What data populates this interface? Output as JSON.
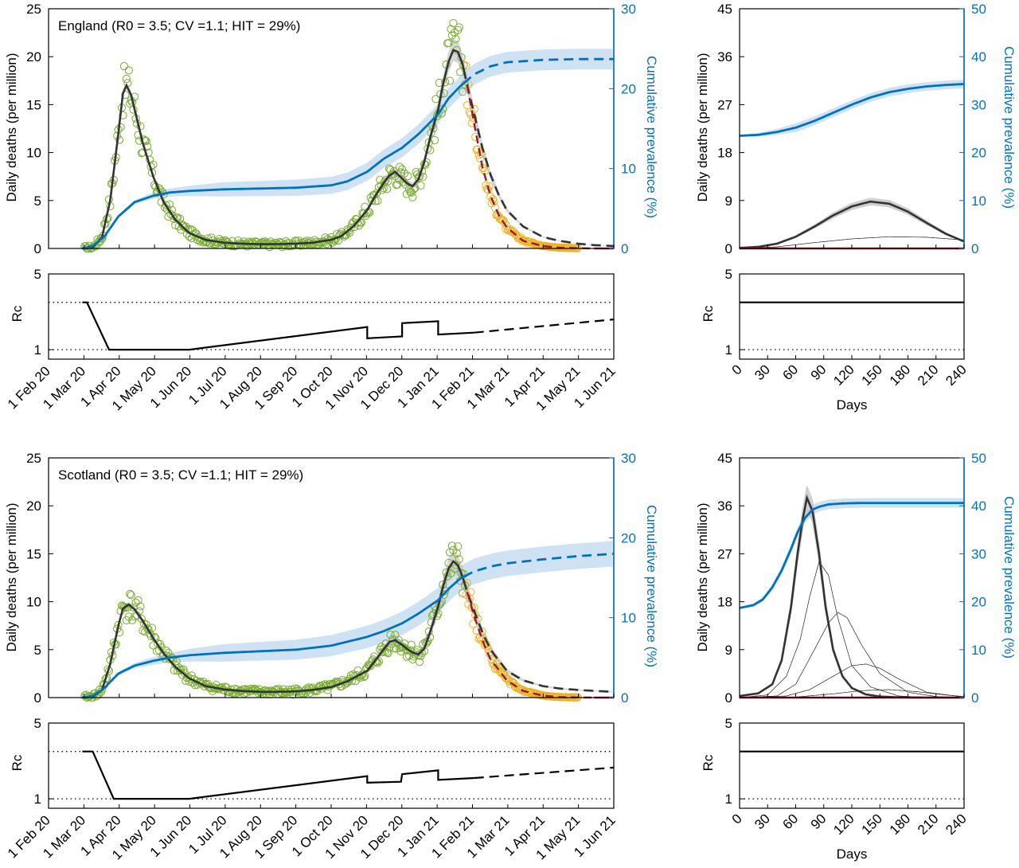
{
  "colors": {
    "observed_fit_points": "#77ac30",
    "observed_predicted_points": "#edb120",
    "model_line": "#333333",
    "model_band": "#bbbbbb",
    "prevalence_line": "#0072bd",
    "prevalence_band": "#a6cbea",
    "no_intervention_line": "#a2142f",
    "rc_line": "#000000"
  },
  "chart_data": [
    {
      "id": "england-deaths",
      "type": "line",
      "annotation": "England (R0 = 3.5; CV =1.1; HIT = 29%)",
      "ylabel": "Daily deaths (per million)",
      "y2label": "Cumulative prevalence (%)",
      "ylim": [
        0,
        25
      ],
      "y2lim": [
        0,
        30
      ],
      "yticks": [
        "0",
        "5",
        "10",
        "15",
        "20",
        "25"
      ],
      "y2ticks": [
        "0",
        "10",
        "20",
        "30"
      ],
      "x_dates": [
        "1 Feb 20",
        "1 Mar 20",
        "1 Apr 20",
        "1 May 20",
        "1 Jun 20",
        "1 Jul 20",
        "1 Aug 20",
        "1 Sep 20",
        "1 Oct 20",
        "1 Nov 20",
        "1 Dec 20",
        "1 Jan 21",
        "1 Feb 21",
        "1 Mar 21",
        "1 Apr 21",
        "1 May 21",
        "1 Jun 21"
      ],
      "series": [
        {
          "kind": "deaths_model",
          "x": [
            "2020-03-01",
            "2020-03-10",
            "2020-03-18",
            "2020-03-25",
            "2020-04-01",
            "2020-04-05",
            "2020-04-08",
            "2020-04-12",
            "2020-04-16",
            "2020-04-22",
            "2020-05-01",
            "2020-05-10",
            "2020-05-20",
            "2020-06-01",
            "2020-06-15",
            "2020-07-01",
            "2020-07-15",
            "2020-08-01",
            "2020-08-15",
            "2020-09-01",
            "2020-09-15",
            "2020-10-01",
            "2020-10-10",
            "2020-10-20",
            "2020-11-01",
            "2020-11-08",
            "2020-11-15",
            "2020-11-20",
            "2020-11-25",
            "2020-12-01",
            "2020-12-05",
            "2020-12-10",
            "2020-12-15",
            "2020-12-20",
            "2020-12-25",
            "2021-01-01",
            "2021-01-05",
            "2021-01-10",
            "2021-01-14",
            "2021-01-18",
            "2021-01-22",
            "2021-01-26",
            "2021-02-01",
            "2021-02-08",
            "2021-02-15",
            "2021-02-22",
            "2021-03-01",
            "2021-03-15",
            "2021-04-01",
            "2021-04-15",
            "2021-05-01",
            "2021-05-15",
            "2021-06-01"
          ],
          "values": [
            0,
            0.1,
            1.2,
            5,
            12,
            16.2,
            17,
            16,
            14,
            11,
            7.5,
            4.8,
            3,
            1.6,
            0.9,
            0.6,
            0.5,
            0.45,
            0.45,
            0.5,
            0.6,
            0.9,
            1.3,
            2.3,
            4,
            5.5,
            6.8,
            7.6,
            8,
            7.3,
            6.8,
            6.5,
            7.2,
            9,
            11.5,
            14.5,
            17,
            19.5,
            20.7,
            20.5,
            19.2,
            17,
            14,
            10.5,
            7.7,
            5.6,
            4,
            2.3,
            1.2,
            0.8,
            0.5,
            0.35,
            0.25
          ]
        },
        {
          "kind": "deaths_no_intervention",
          "x": [
            "2021-01-26",
            "2021-02-01",
            "2021-02-08",
            "2021-02-15",
            "2021-02-22",
            "2021-03-01",
            "2021-03-15",
            "2021-04-01",
            "2021-04-15",
            "2021-05-01",
            "2021-05-15"
          ],
          "values": [
            17,
            13,
            8.5,
            5.5,
            3.5,
            2.2,
            0.8,
            0.25,
            0.08,
            0.03,
            0
          ]
        },
        {
          "kind": "prevalence",
          "x": [
            "2020-03-01",
            "2020-03-10",
            "2020-03-20",
            "2020-04-01",
            "2020-04-15",
            "2020-05-01",
            "2020-05-15",
            "2020-06-01",
            "2020-07-01",
            "2020-08-01",
            "2020-09-01",
            "2020-10-01",
            "2020-10-15",
            "2020-11-01",
            "2020-11-15",
            "2020-12-01",
            "2020-12-15",
            "2021-01-01",
            "2021-01-10",
            "2021-01-20",
            "2021-02-01",
            "2021-02-15",
            "2021-03-01",
            "2021-04-01",
            "2021-05-01",
            "2021-06-01"
          ],
          "values": [
            0,
            0.3,
            1.5,
            4,
            5.8,
            6.6,
            7,
            7.2,
            7.4,
            7.5,
            7.6,
            7.9,
            8.4,
            9.6,
            11.2,
            12.6,
            14.3,
            16.8,
            18.8,
            20.3,
            21.8,
            22.8,
            23.3,
            23.6,
            23.7,
            23.7
          ]
        }
      ],
      "observed_points": "scattered daily observations (green = used for fit, yellow = after fit)"
    },
    {
      "id": "england-rc",
      "type": "line",
      "ylabel": "Rc",
      "ylim": [
        0.5,
        5
      ],
      "yticks": [
        "1",
        "5"
      ],
      "reference_lines": [
        1,
        3.5
      ],
      "series": [
        {
          "name": "",
          "x": [
            "2020-03-01",
            "2020-03-05",
            "2020-03-24",
            "2020-04-15",
            "2020-06-01",
            "2020-11-01",
            "2020-11-01",
            "2020-11-15",
            "2020-12-01",
            "2020-12-01",
            "2021-01-01",
            "2021-01-01",
            "2021-02-01",
            "2021-06-01"
          ],
          "values": [
            3.5,
            3.5,
            1,
            1,
            1,
            2.2,
            1.6,
            1.65,
            1.7,
            2.4,
            2.5,
            1.8,
            1.9,
            2.6
          ]
        }
      ]
    },
    {
      "id": "england-days",
      "type": "line",
      "ylabel": "Daily deaths (per million)",
      "y2label": "Cumulative prevalence (%)",
      "xlabel": "Days",
      "xlim": [
        0,
        240
      ],
      "ylim": [
        0,
        45
      ],
      "y2lim": [
        0,
        50
      ],
      "yticks": [
        "0",
        "9",
        "18",
        "27",
        "36",
        "45"
      ],
      "y2ticks": [
        "0",
        "10",
        "20",
        "30",
        "40",
        "50"
      ],
      "xticks": [
        "0",
        "30",
        "60",
        "90",
        "120",
        "150",
        "180",
        "210",
        "240"
      ],
      "series": [
        {
          "kind": "deaths_model",
          "x": [
            0,
            20,
            40,
            60,
            80,
            100,
            120,
            140,
            160,
            180,
            200,
            220,
            240
          ],
          "values": [
            0.1,
            0.3,
            0.9,
            2.2,
            4.1,
            6.2,
            7.9,
            8.8,
            8.4,
            6.9,
            4.8,
            2.8,
            1.3
          ]
        },
        {
          "kind": "deaths_component",
          "x": [
            0,
            40,
            80,
            120,
            160,
            200,
            240
          ],
          "values": [
            0,
            0.3,
            1.1,
            1.8,
            2.2,
            2.1,
            1.6
          ]
        },
        {
          "kind": "no_intervention",
          "x": [
            0,
            240
          ],
          "values": [
            0,
            0
          ]
        },
        {
          "kind": "prevalence",
          "x": [
            0,
            20,
            40,
            60,
            80,
            100,
            120,
            140,
            160,
            180,
            200,
            220,
            240
          ],
          "values": [
            23.5,
            23.7,
            24.3,
            25.2,
            26.6,
            28.3,
            30,
            31.5,
            32.6,
            33.3,
            33.8,
            34.1,
            34.3
          ]
        }
      ]
    },
    {
      "id": "england-days-rc",
      "type": "line",
      "ylabel": "Rc",
      "ylim": [
        0.5,
        5
      ],
      "yticks": [
        "1",
        "5"
      ],
      "reference_lines": [
        1
      ],
      "series": [
        {
          "name": "",
          "x": [
            0,
            240
          ],
          "values": [
            3.5,
            3.5
          ]
        }
      ]
    },
    {
      "id": "scotland-deaths",
      "type": "line",
      "annotation": "Scotland (R0 = 3.5; CV =1.1; HIT = 29%)",
      "ylabel": "Daily deaths (per million)",
      "y2label": "Cumulative prevalence (%)",
      "ylim": [
        0,
        25
      ],
      "y2lim": [
        0,
        30
      ],
      "yticks": [
        "0",
        "5",
        "10",
        "15",
        "20",
        "25"
      ],
      "y2ticks": [
        "0",
        "10",
        "20",
        "30"
      ],
      "x_dates": [
        "1 Feb 20",
        "1 Mar 20",
        "1 Apr 20",
        "1 May 20",
        "1 Jun 20",
        "1 Jul 20",
        "1 Aug 20",
        "1 Sep 20",
        "1 Oct 20",
        "1 Nov 20",
        "1 Dec 20",
        "1 Jan 21",
        "1 Feb 21",
        "1 Mar 21",
        "1 Apr 21",
        "1 May 21",
        "1 Jun 21"
      ],
      "series": [
        {
          "kind": "deaths_model",
          "x": [
            "2020-03-01",
            "2020-03-10",
            "2020-03-18",
            "2020-03-25",
            "2020-04-01",
            "2020-04-05",
            "2020-04-10",
            "2020-04-15",
            "2020-04-22",
            "2020-05-01",
            "2020-05-10",
            "2020-05-20",
            "2020-06-01",
            "2020-06-15",
            "2020-07-01",
            "2020-07-15",
            "2020-08-01",
            "2020-08-15",
            "2020-09-01",
            "2020-09-15",
            "2020-10-01",
            "2020-10-15",
            "2020-11-01",
            "2020-11-10",
            "2020-11-20",
            "2020-11-25",
            "2020-12-01",
            "2020-12-05",
            "2020-12-10",
            "2020-12-15",
            "2020-12-20",
            "2020-12-25",
            "2021-01-01",
            "2021-01-05",
            "2021-01-10",
            "2021-01-14",
            "2021-01-18",
            "2021-01-22",
            "2021-01-26",
            "2021-02-01",
            "2021-02-08",
            "2021-02-15",
            "2021-03-01",
            "2021-03-15",
            "2021-04-01",
            "2021-04-15",
            "2021-05-01",
            "2021-05-15",
            "2021-06-01"
          ],
          "values": [
            0,
            0.1,
            0.8,
            3.5,
            7.5,
            9.3,
            9.7,
            9.2,
            8,
            6.2,
            4.6,
            3.2,
            2,
            1.2,
            0.85,
            0.7,
            0.6,
            0.6,
            0.65,
            0.8,
            1.1,
            1.7,
            2.8,
            4.2,
            5.8,
            6,
            5.5,
            5.1,
            4.7,
            4.5,
            5.1,
            6.8,
            9.5,
            11.5,
            13.5,
            14.2,
            13.8,
            12.6,
            11,
            9,
            6.8,
            5,
            2.8,
            1.8,
            1.2,
            0.95,
            0.8,
            0.7,
            0.6
          ]
        },
        {
          "kind": "deaths_no_intervention",
          "x": [
            "2021-01-26",
            "2021-02-01",
            "2021-02-08",
            "2021-02-15",
            "2021-03-01",
            "2021-03-15",
            "2021-04-01",
            "2021-04-15",
            "2021-05-01",
            "2021-05-15"
          ],
          "values": [
            11,
            8.5,
            6,
            4,
            1.8,
            0.7,
            0.2,
            0.06,
            0.02,
            0
          ]
        },
        {
          "kind": "prevalence",
          "x": [
            "2020-03-01",
            "2020-03-10",
            "2020-03-20",
            "2020-04-01",
            "2020-04-15",
            "2020-05-01",
            "2020-05-15",
            "2020-06-01",
            "2020-07-01",
            "2020-08-01",
            "2020-09-01",
            "2020-10-01",
            "2020-11-01",
            "2020-11-15",
            "2020-12-01",
            "2020-12-15",
            "2021-01-01",
            "2021-01-10",
            "2021-01-20",
            "2021-02-01",
            "2021-02-15",
            "2021-03-01",
            "2021-04-01",
            "2021-05-01",
            "2021-06-01"
          ],
          "values": [
            0,
            0.2,
            1.2,
            3,
            4,
            4.6,
            5,
            5.3,
            5.6,
            5.8,
            6,
            6.5,
            7.6,
            8.3,
            9.3,
            10.5,
            12.2,
            13.6,
            14.9,
            15.8,
            16.4,
            16.8,
            17.3,
            17.7,
            18
          ]
        }
      ],
      "observed_points": "scattered daily observations (green = used for fit, yellow = after fit)"
    },
    {
      "id": "scotland-rc",
      "type": "line",
      "ylabel": "Rc",
      "ylim": [
        0.5,
        5
      ],
      "yticks": [
        "1",
        "5"
      ],
      "reference_lines": [
        1,
        3.5
      ],
      "series": [
        {
          "name": "",
          "x": [
            "2020-03-01",
            "2020-03-10",
            "2020-03-28",
            "2020-04-15",
            "2020-06-01",
            "2020-11-01",
            "2020-11-01",
            "2020-11-30",
            "2020-12-01",
            "2021-01-01",
            "2021-01-01",
            "2021-02-01",
            "2021-06-01"
          ],
          "values": [
            3.5,
            3.5,
            1,
            1,
            1,
            2.2,
            1.85,
            1.9,
            2.3,
            2.5,
            2,
            2.1,
            2.65
          ]
        }
      ]
    },
    {
      "id": "scotland-days",
      "type": "line",
      "ylabel": "Daily deaths (per million)",
      "y2label": "Cumulative prevalence (%)",
      "xlabel": "Days",
      "xlim": [
        0,
        240
      ],
      "ylim": [
        0,
        45
      ],
      "y2lim": [
        0,
        50
      ],
      "yticks": [
        "0",
        "9",
        "18",
        "27",
        "36",
        "45"
      ],
      "y2ticks": [
        "0",
        "10",
        "20",
        "30",
        "40",
        "50"
      ],
      "xticks": [
        "0",
        "30",
        "60",
        "90",
        "120",
        "150",
        "180",
        "210",
        "240"
      ],
      "series": [
        {
          "kind": "deaths_model",
          "x": [
            0,
            20,
            35,
            45,
            55,
            62,
            68,
            72,
            78,
            85,
            92,
            100,
            110,
            120,
            135,
            150,
            170,
            200,
            240
          ],
          "values": [
            0.3,
            0.8,
            2.5,
            7,
            17,
            27,
            34,
            37.5,
            35,
            27,
            17,
            9,
            4,
            1.8,
            0.6,
            0.2,
            0.05,
            0,
            0
          ]
        },
        {
          "kind": "deaths_component",
          "x": [
            0,
            30,
            50,
            65,
            75,
            85,
            95,
            105,
            120,
            140,
            170,
            200,
            240
          ],
          "values": [
            0,
            0.5,
            4,
            11,
            19,
            25.5,
            23,
            15,
            6,
            2,
            0.3,
            0.05,
            0
          ]
        },
        {
          "kind": "deaths_component",
          "x": [
            0,
            40,
            60,
            80,
            95,
            105,
            115,
            130,
            150,
            180,
            210,
            240
          ],
          "values": [
            0,
            0.3,
            2.5,
            9,
            14,
            16,
            15,
            10,
            4.5,
            1,
            0.2,
            0
          ]
        },
        {
          "kind": "deaths_component",
          "x": [
            0,
            50,
            75,
            100,
            120,
            135,
            150,
            170,
            200,
            240
          ],
          "values": [
            0,
            0.3,
            1.5,
            4,
            6,
            6.3,
            5.5,
            3.5,
            1,
            0.1
          ]
        },
        {
          "kind": "deaths_component",
          "x": [
            0,
            60,
            100,
            130,
            160,
            190,
            220,
            240
          ],
          "values": [
            0,
            0.1,
            0.7,
            1.3,
            1.5,
            1.1,
            0.5,
            0.2
          ]
        },
        {
          "kind": "no_intervention",
          "x": [
            0,
            240
          ],
          "values": [
            0,
            0
          ]
        },
        {
          "kind": "prevalence",
          "x": [
            0,
            15,
            25,
            35,
            45,
            55,
            62,
            70,
            78,
            85,
            95,
            110,
            130,
            160,
            200,
            240
          ],
          "values": [
            18.7,
            19.3,
            20.5,
            23,
            26.5,
            31,
            34.5,
            37.5,
            39.2,
            39.8,
            40.3,
            40.5,
            40.6,
            40.6,
            40.6,
            40.6
          ]
        }
      ]
    },
    {
      "id": "scotland-days-rc",
      "type": "line",
      "ylabel": "Rc",
      "ylim": [
        0.5,
        5
      ],
      "yticks": [
        "1",
        "5"
      ],
      "reference_lines": [
        1
      ],
      "series": [
        {
          "name": "",
          "x": [
            0,
            240
          ],
          "values": [
            3.5,
            3.5
          ]
        }
      ]
    }
  ]
}
